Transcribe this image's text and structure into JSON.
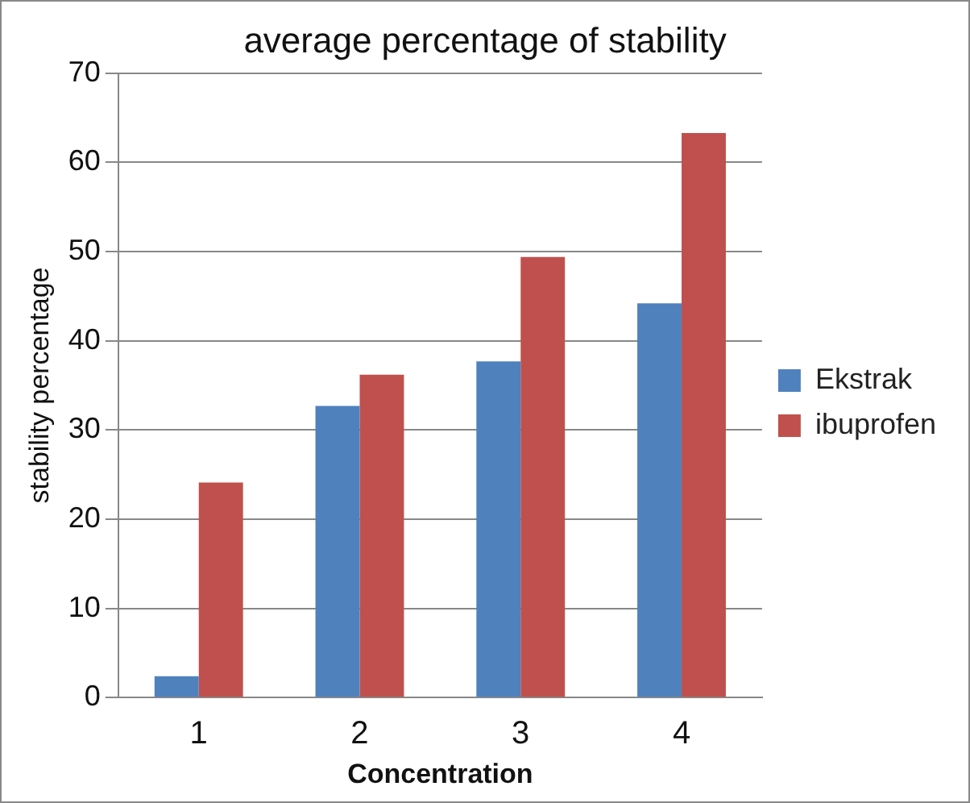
{
  "chart_data": {
    "type": "bar",
    "title": "average percentage of stability",
    "xlabel": "Concentration",
    "ylabel": "stability percentage",
    "categories": [
      "1",
      "2",
      "3",
      "4"
    ],
    "series": [
      {
        "name": "Ekstrak",
        "color": "#4f81bd",
        "values": [
          2.4,
          32.7,
          37.7,
          44.2
        ]
      },
      {
        "name": "ibuprofen",
        "color": "#c0504d",
        "values": [
          24.1,
          36.2,
          49.4,
          63.3
        ]
      }
    ],
    "ylim": [
      0,
      70
    ],
    "yticks": [
      0,
      10,
      20,
      30,
      40,
      50,
      60,
      70
    ],
    "grid": "y",
    "legend": "right"
  }
}
